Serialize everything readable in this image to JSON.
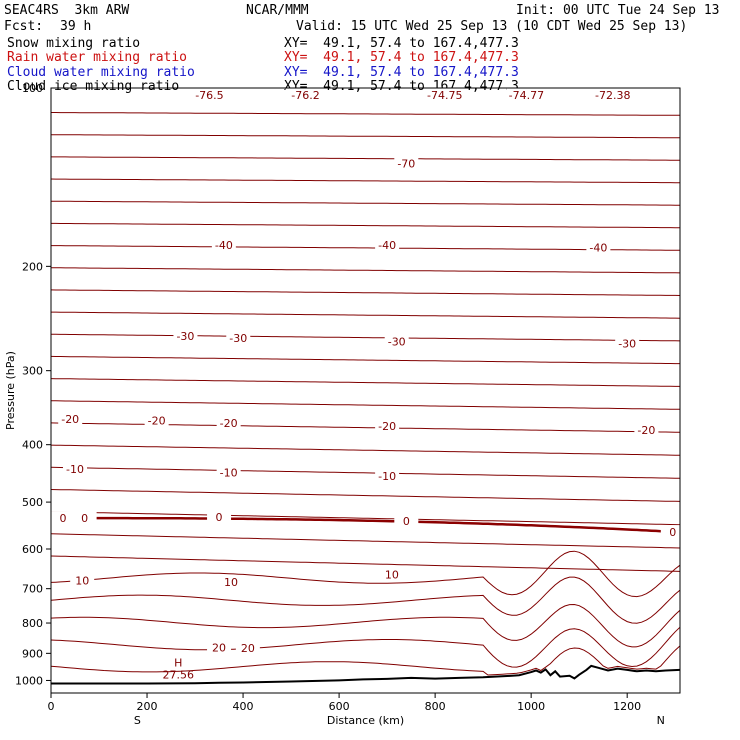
{
  "header": {
    "model": "SEAC4RS  3km ARW",
    "org": "NCAR/MMM",
    "init": "Init: 00 UTC Tue 24 Sep 13",
    "fcst_label": "Fcst:",
    "fcst_value": "39 h",
    "valid": "Valid: 15 UTC Wed 25 Sep 13 (10 CDT Wed 25 Sep 13)"
  },
  "fields": [
    {
      "name": "Snow mixing ratio",
      "xy": "XY=  49.1, 57.4 to 167.4,477.3",
      "color": "#000000"
    },
    {
      "name": "Rain water mixing ratio",
      "xy": "XY=  49.1, 57.4 to 167.4,477.3",
      "color": "#cc1111"
    },
    {
      "name": "Cloud water mixing ratio",
      "xy": "XY=  49.1, 57.4 to 167.4,477.3",
      "color": "#1515c8"
    },
    {
      "name": "Cloud ice mixing ratio",
      "xy": "XY=  49.1, 57.4 to 167.4,477.3",
      "color": "#000000"
    }
  ],
  "chart_data": {
    "type": "line",
    "xlabel": "Distance (km)",
    "ylabel": "Pressure (hPa)",
    "xlim": [
      0,
      1310
    ],
    "ylim": [
      1050,
      100
    ],
    "y_scale": "log",
    "x_ticks": [
      0,
      200,
      400,
      600,
      800,
      1000,
      1200
    ],
    "y_ticks": [
      200,
      300,
      400,
      500,
      600,
      700,
      800,
      900,
      1000
    ],
    "y_top_tick_label": "100",
    "end_labels": {
      "left": "S",
      "right": "N"
    },
    "contour_color": "#800000",
    "zero_contour_color": "#8b0000",
    "terrain_color": "#000000",
    "isotherm_labels": [
      {
        "value": "-70",
        "x": 740,
        "p": 134
      },
      {
        "value": "-40",
        "x": 360,
        "p": 184
      },
      {
        "value": "-40",
        "x": 700,
        "p": 184
      },
      {
        "value": "-40",
        "x": 1140,
        "p": 186
      },
      {
        "value": "-30",
        "x": 280,
        "p": 262
      },
      {
        "value": "-30",
        "x": 390,
        "p": 264
      },
      {
        "value": "-30",
        "x": 720,
        "p": 268
      },
      {
        "value": "-30",
        "x": 1200,
        "p": 270
      },
      {
        "value": "-20",
        "x": 40,
        "p": 362
      },
      {
        "value": "-20",
        "x": 220,
        "p": 364
      },
      {
        "value": "-20",
        "x": 370,
        "p": 368
      },
      {
        "value": "-20",
        "x": 700,
        "p": 372
      },
      {
        "value": "-20",
        "x": 1240,
        "p": 378
      },
      {
        "value": "-10",
        "x": 50,
        "p": 440
      },
      {
        "value": "-10",
        "x": 370,
        "p": 446
      },
      {
        "value": "-10",
        "x": 700,
        "p": 452
      },
      {
        "value": "0",
        "x": 25,
        "p": 532
      },
      {
        "value": "0",
        "x": 70,
        "p": 532
      },
      {
        "value": "0",
        "x": 350,
        "p": 530
      },
      {
        "value": "0",
        "x": 740,
        "p": 538
      },
      {
        "value": "0",
        "x": 1295,
        "p": 562
      },
      {
        "value": "10",
        "x": 65,
        "p": 678
      },
      {
        "value": "10",
        "x": 375,
        "p": 682
      },
      {
        "value": "10",
        "x": 710,
        "p": 662
      },
      {
        "value": "20",
        "x": 350,
        "p": 880
      },
      {
        "value": "20",
        "x": 410,
        "p": 882
      }
    ],
    "top_labels": [
      {
        "value": "-76.5",
        "x": 330
      },
      {
        "value": "-76.2",
        "x": 530
      },
      {
        "value": "-74.75",
        "x": 820
      },
      {
        "value": "-74.77",
        "x": 990
      },
      {
        "value": "-72.38",
        "x": 1170
      }
    ],
    "max_marker": {
      "label": "H",
      "value": "27.56",
      "x": 265,
      "p": 985
    },
    "terrain_p": [
      [
        0,
        1012
      ],
      [
        100,
        1012
      ],
      [
        200,
        1012
      ],
      [
        300,
        1011
      ],
      [
        350,
        1009
      ],
      [
        400,
        1008
      ],
      [
        500,
        1004
      ],
      [
        600,
        1000
      ],
      [
        650,
        996
      ],
      [
        700,
        994
      ],
      [
        750,
        990
      ],
      [
        800,
        993
      ],
      [
        850,
        990
      ],
      [
        900,
        988
      ],
      [
        950,
        983
      ],
      [
        975,
        980
      ],
      [
        1000,
        968
      ],
      [
        1010,
        962
      ],
      [
        1020,
        970
      ],
      [
        1030,
        958
      ],
      [
        1040,
        980
      ],
      [
        1050,
        965
      ],
      [
        1060,
        985
      ],
      [
        1080,
        982
      ],
      [
        1090,
        992
      ],
      [
        1100,
        978
      ],
      [
        1115,
        960
      ],
      [
        1125,
        945
      ],
      [
        1140,
        952
      ],
      [
        1160,
        962
      ],
      [
        1180,
        955
      ],
      [
        1200,
        960
      ],
      [
        1220,
        965
      ],
      [
        1240,
        962
      ],
      [
        1260,
        965
      ],
      [
        1280,
        962
      ],
      [
        1310,
        960
      ]
    ]
  }
}
